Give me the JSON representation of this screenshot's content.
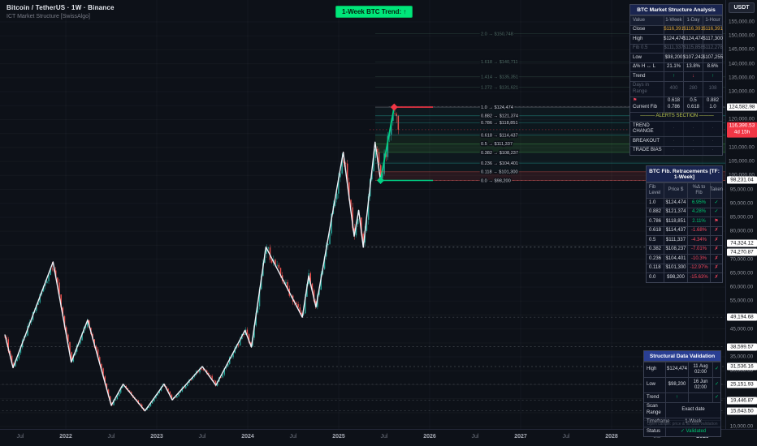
{
  "header": {
    "symbol_title": "Bitcoin / TetherUS · 1W · Binance",
    "indicator_title": "ICT Market Structure [SwissAlgo]"
  },
  "trend_badge": {
    "label": "1-Week BTC Trend: ↑",
    "bg": "#00e67a"
  },
  "price_axis": {
    "currency_button": "USDT",
    "ticks": [
      {
        "p": 155000,
        "l": "155,000.00"
      },
      {
        "p": 150000,
        "l": "150,000.00"
      },
      {
        "p": 145000,
        "l": "145,000.00"
      },
      {
        "p": 140000,
        "l": "140,000.00"
      },
      {
        "p": 135000,
        "l": "135,000.00"
      },
      {
        "p": 130000,
        "l": "130,000.00"
      },
      {
        "p": 120000,
        "l": "120,000.00"
      },
      {
        "p": 110000,
        "l": "110,000.00"
      },
      {
        "p": 105000,
        "l": "105,000.00"
      },
      {
        "p": 100000,
        "l": "100,000.00"
      },
      {
        "p": 95000,
        "l": "95,000.00"
      },
      {
        "p": 90000,
        "l": "90,000.00"
      },
      {
        "p": 85000,
        "l": "85,000.00"
      },
      {
        "p": 80000,
        "l": "80,000.00"
      },
      {
        "p": 70000,
        "l": "70,000.00"
      },
      {
        "p": 65000,
        "l": "65,000.00"
      },
      {
        "p": 60000,
        "l": "60,000.00"
      },
      {
        "p": 55000,
        "l": "55,000.00"
      },
      {
        "p": 45000,
        "l": "45,000.00"
      },
      {
        "p": 35000,
        "l": "35,000.00"
      },
      {
        "p": 30000,
        "l": "30,000.00"
      },
      {
        "p": 10000,
        "l": "10,000.00"
      }
    ],
    "badges": [
      {
        "p": 124582.98,
        "l": "124,582.98",
        "dy": 0
      },
      {
        "p": 98231.04,
        "l": "98,231.04",
        "dy": 0
      },
      {
        "p": 74324.12,
        "l": "74,324.12",
        "dy": -5
      },
      {
        "p": 74270.87,
        "l": "74,270.87",
        "dy": 6
      },
      {
        "p": 49194.68,
        "l": "49,194.68",
        "dy": 0
      },
      {
        "p": 38599.57,
        "l": "38,599.57",
        "dy": 0
      },
      {
        "p": 31536.16,
        "l": "31,536.16",
        "dy": 0
      },
      {
        "p": 25151.93,
        "l": "25,151.93",
        "dy": 0
      },
      {
        "p": 19446.87,
        "l": "19,446.87",
        "dy": 0
      },
      {
        "p": 15643.5,
        "l": "15,643.50",
        "dy": 0
      }
    ],
    "current": {
      "price": 116390.53,
      "label": "116,390.53",
      "countdown": "4d 15h"
    }
  },
  "time_axis": {
    "ticks": [
      {
        "t": 2021.5,
        "l": "Jul",
        "major": false
      },
      {
        "t": 2022,
        "l": "2022",
        "major": true
      },
      {
        "t": 2022.5,
        "l": "Jul",
        "major": false
      },
      {
        "t": 2023,
        "l": "2023",
        "major": true
      },
      {
        "t": 2023.5,
        "l": "Jul",
        "major": false
      },
      {
        "t": 2024,
        "l": "2024",
        "major": true
      },
      {
        "t": 2024.5,
        "l": "Jul",
        "major": false
      },
      {
        "t": 2025,
        "l": "2025",
        "major": true
      },
      {
        "t": 2025.5,
        "l": "Jul",
        "major": false
      },
      {
        "t": 2026,
        "l": "2026",
        "major": true
      },
      {
        "t": 2026.5,
        "l": "Jul",
        "major": false
      },
      {
        "t": 2027,
        "l": "2027",
        "major": true
      },
      {
        "t": 2027.5,
        "l": "Jul",
        "major": false
      },
      {
        "t": 2028,
        "l": "2028",
        "major": true
      },
      {
        "t": 2028.5,
        "l": "Jul",
        "major": false
      },
      {
        "t": 2029,
        "l": "2029",
        "major": true
      }
    ]
  },
  "tables": {
    "market_structure": {
      "title": "BTC Market Structure Analysis",
      "headers": [
        "Value",
        "1-Week",
        "1-Day",
        "1-Hour"
      ],
      "rows": [
        {
          "label": "Close",
          "cells": [
            "$116,391",
            "$116,391",
            "$116,391"
          ],
          "style": "gold"
        },
        {
          "label": "High",
          "cells": [
            "$124,474",
            "$124,474",
            "$117,300"
          ],
          "style": "plain"
        },
        {
          "label": "Fib 0.5",
          "cells": [
            "$111,337",
            "$115,858",
            "$112,278"
          ],
          "style": "dim"
        },
        {
          "label": "Low",
          "cells": [
            "$98,200",
            "$107,242",
            "$107,255"
          ],
          "style": "plain"
        },
        {
          "label": "Δ% H ↔ L",
          "cells": [
            "21.1%",
            "13.8%",
            "8.6%"
          ],
          "style": "plain"
        },
        {
          "label": "Trend",
          "cells": [
            "↑",
            "↓",
            "↑"
          ],
          "style": "trend",
          "cell_colors": [
            "green",
            "red",
            "green"
          ]
        },
        {
          "label": "Days in Range",
          "cells": [
            "400",
            "280",
            "108"
          ],
          "style": "dim"
        },
        {
          "label": "Current Fib",
          "flag": "⚑",
          "cells": [
            [
              "0.618",
              "0.786"
            ],
            [
              "0.5",
              "0.618"
            ],
            [
              "0.882",
              "1.0"
            ]
          ],
          "style": "plain"
        }
      ],
      "alerts_header": "——— ALERTS SECTION ———",
      "alert_rows": [
        {
          "label": "TREND CHANGE",
          "cells": [
            "·",
            "·",
            "·"
          ]
        },
        {
          "label": "BREAKOUT",
          "cells": [
            "·",
            "·",
            "·"
          ]
        },
        {
          "label": "TRADE BIAS",
          "cells": [
            "·",
            "·",
            "·"
          ]
        }
      ]
    },
    "fib_retracements": {
      "title": "BTC Fib. Retracements [TF: 1-Week]",
      "headers": [
        "Fib Level",
        "Price $",
        "%Δ to Fib",
        "Taken"
      ],
      "rows": [
        {
          "level": "1.0",
          "price": "$124,474",
          "delta": "6.95%",
          "delta_color": "green",
          "taken": "✓",
          "taken_color": "green"
        },
        {
          "level": "0.882",
          "price": "$121,374",
          "delta": "4.28%",
          "delta_color": "green",
          "taken": "✓",
          "taken_color": "green"
        },
        {
          "level": "0.786",
          "price": "$118,851",
          "delta": "2.11%",
          "delta_color": "green",
          "taken": "⚑",
          "taken_color": "red"
        },
        {
          "level": "0.618",
          "price": "$114,437",
          "delta": "-1.68%",
          "delta_color": "red",
          "taken": "✗",
          "taken_color": "red"
        },
        {
          "level": "0.5",
          "price": "$111,337",
          "delta": "-4.34%",
          "delta_color": "red",
          "taken": "✗",
          "taken_color": "red"
        },
        {
          "level": "0.382",
          "price": "$108,237",
          "delta": "-7.01%",
          "delta_color": "red",
          "taken": "✗",
          "taken_color": "red"
        },
        {
          "level": "0.236",
          "price": "$104,401",
          "delta": "-10.3%",
          "delta_color": "red",
          "taken": "✗",
          "taken_color": "red"
        },
        {
          "level": "0.118",
          "price": "$101,300",
          "delta": "-12.97%",
          "delta_color": "red",
          "taken": "✗",
          "taken_color": "red"
        },
        {
          "level": "0.0",
          "price": "$98,200",
          "delta": "-15.63%",
          "delta_color": "red",
          "taken": "✗",
          "taken_color": "red"
        }
      ]
    },
    "validation": {
      "title": "Structural Data Validation",
      "rows": [
        {
          "label": "High",
          "value": "$124,474",
          "date": "11 Aug 02:00",
          "check": "✓"
        },
        {
          "label": "Low",
          "value": "$98,200",
          "date": "16 Jun 02:00",
          "check": "✓"
        },
        {
          "label": "Trend",
          "value": "↑",
          "value_color": "green",
          "date": "",
          "check": "✓"
        },
        {
          "label": "Scan Range",
          "value": "Exact date",
          "span": true
        },
        {
          "label": "Timeframe",
          "value": "1-Week",
          "span": true
        },
        {
          "label": "Status",
          "value": "✓ Validated",
          "value_color": "green",
          "span": true
        }
      ],
      "caption": "Open candle: price & fib data validation"
    }
  },
  "chart_data": {
    "type": "candlestick",
    "symbol": "BTCUSDT",
    "timeframe": "1-Week",
    "exchange": "Binance",
    "ylim": [
      10000,
      155000
    ],
    "xlim_years": [
      2021.3,
      2029.6
    ],
    "colors": {
      "up": "#26a69a",
      "down": "#ef5350",
      "structure": "#eef1f7",
      "impulse": "#00d084",
      "high_marker": "#f23645",
      "low_marker": "#00d084"
    },
    "structure_line": [
      [
        2021.33,
        43000
      ],
      [
        2021.42,
        31100
      ],
      [
        2021.86,
        69000
      ],
      [
        2022.06,
        33100
      ],
      [
        2022.24,
        48200
      ],
      [
        2022.5,
        17600
      ],
      [
        2022.63,
        25200
      ],
      [
        2022.87,
        15643
      ],
      [
        2023.08,
        25250
      ],
      [
        2023.17,
        19570
      ],
      [
        2023.5,
        31536
      ],
      [
        2023.65,
        24800
      ],
      [
        2023.97,
        44500
      ],
      [
        2024.04,
        38500
      ],
      [
        2024.2,
        74324
      ],
      [
        2024.6,
        49194
      ],
      [
        2024.67,
        64000
      ],
      [
        2024.75,
        52800
      ],
      [
        2025.05,
        108300
      ],
      [
        2025.17,
        78200
      ],
      [
        2025.22,
        87500
      ],
      [
        2025.27,
        74270
      ],
      [
        2025.4,
        111900
      ],
      [
        2025.46,
        98200
      ]
    ],
    "impulse_leg": [
      [
        2025.46,
        98200
      ],
      [
        2025.61,
        124474
      ]
    ],
    "price_path_end": [
      2025.655,
      116390
    ],
    "swing_markers": [
      {
        "type": "high",
        "t": 2025.61,
        "price": 124474,
        "color": "#f23645"
      },
      {
        "type": "low",
        "t": 2025.46,
        "price": 98200,
        "color": "#00d084"
      }
    ],
    "fib": {
      "anchor_low": 98200,
      "anchor_high": 124474,
      "levels": [
        {
          "level": "1.0",
          "price": 124474,
          "label": "1.0 → $124,474",
          "color": "#b2b5be"
        },
        {
          "level": "0.882",
          "price": 121374,
          "label": "0.882 → $121,374",
          "color": "#26a69a"
        },
        {
          "level": "0.786",
          "price": 118851,
          "label": "0.786 → $118,851",
          "color": "#26a69a"
        },
        {
          "level": "0.618",
          "price": 114437,
          "label": "0.618 → $114,437",
          "color": "#26a69a"
        },
        {
          "level": "0.5",
          "price": 111337,
          "label": "0.5 → $111,337",
          "color": "#4caf50"
        },
        {
          "level": "0.382",
          "price": 108237,
          "label": "0.382 → $108,237",
          "color": "#4caf50"
        },
        {
          "level": "0.236",
          "price": 104401,
          "label": "0.236 → $104,401",
          "color": "#26a69a"
        },
        {
          "level": "0.118",
          "price": 101300,
          "label": "0.118 → $101,300",
          "color": "#ef5350"
        },
        {
          "level": "0.0",
          "price": 98200,
          "label": "0.0 → $98,200",
          "color": "#ef5350"
        }
      ],
      "extensions": [
        {
          "level": "2.0",
          "price": 150748,
          "label": "2.0 → $150,748"
        },
        {
          "level": "1.618",
          "price": 140711,
          "label": "1.618 → $140,711"
        },
        {
          "level": "1.414",
          "price": 135351,
          "label": "1.414 → $135,351"
        },
        {
          "level": "1.272",
          "price": 131621,
          "label": "1.272 → $131,621"
        }
      ],
      "bands": [
        {
          "from": 124474,
          "to": 121374,
          "color": "rgba(38,166,154,0.05)"
        },
        {
          "from": 121374,
          "to": 118851,
          "color": "rgba(38,166,154,0.05)"
        },
        {
          "from": 118851,
          "to": 114437,
          "color": "rgba(38,166,154,0.04)"
        },
        {
          "from": 114437,
          "to": 111337,
          "color": "rgba(76,175,80,0.10)"
        },
        {
          "from": 111337,
          "to": 108237,
          "color": "rgba(76,175,80,0.16)"
        },
        {
          "from": 108237,
          "to": 104401,
          "color": "rgba(38,166,154,0.05)"
        },
        {
          "from": 104401,
          "to": 101300,
          "color": "rgba(38,166,154,0.04)"
        },
        {
          "from": 101300,
          "to": 98200,
          "color": "rgba(239,83,80,0.12)"
        }
      ]
    },
    "level_lines": [
      {
        "price": 124582.98,
        "from_t": 2025.55
      },
      {
        "price": 98231.04,
        "from_t": 2025.44
      },
      {
        "price": 74324.12,
        "from_t": 2024.2
      },
      {
        "price": 74270.87,
        "from_t": 2025.27
      },
      {
        "price": 49194.68,
        "from_t": 2024.6
      },
      {
        "price": 38599.57,
        "from_t": 2021.3
      },
      {
        "price": 31536.16,
        "from_t": 2023.5
      },
      {
        "price": 25151.93,
        "from_t": 2021.3
      },
      {
        "price": 19446.87,
        "from_t": 2021.3
      },
      {
        "price": 15643.5,
        "from_t": 2021.3
      }
    ],
    "current_price": {
      "price": 116390.53
    }
  }
}
